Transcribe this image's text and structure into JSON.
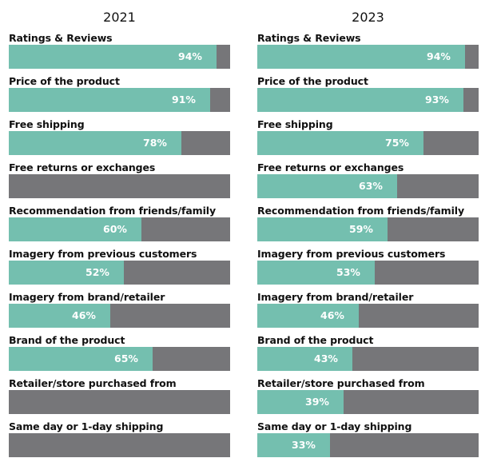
{
  "chart_data": [
    {
      "type": "bar",
      "title": "2021",
      "orientation": "horizontal",
      "xlim": [
        0,
        100
      ],
      "grid": false,
      "categories": [
        "Ratings & Reviews",
        "Price of the product",
        "Free shipping",
        "Free returns or exchanges",
        "Recommendation from friends/family",
        "Imagery from previous customers",
        "Imagery from brand/retailer",
        "Brand of the product",
        "Retailer/store purchased from",
        "Same day or 1-day shipping"
      ],
      "values": [
        94,
        91,
        78,
        null,
        60,
        52,
        46,
        65,
        null,
        null
      ],
      "value_labels": [
        "94%",
        "91%",
        "78%",
        "",
        "60%",
        "52%",
        "46%",
        "65%",
        "",
        ""
      ]
    },
    {
      "type": "bar",
      "title": "2023",
      "orientation": "horizontal",
      "xlim": [
        0,
        100
      ],
      "grid": false,
      "categories": [
        "Ratings & Reviews",
        "Price of the product",
        "Free shipping",
        "Free returns or exchanges",
        "Recommendation from friends/family",
        "Imagery from previous customers",
        "Imagery from brand/retailer",
        "Brand of the product",
        "Retailer/store purchased from",
        "Same day or 1-day shipping"
      ],
      "values": [
        94,
        93,
        75,
        63,
        59,
        53,
        46,
        43,
        39,
        33
      ],
      "value_labels": [
        "94%",
        "93%",
        "75%",
        "63%",
        "59%",
        "53%",
        "46%",
        "43%",
        "39%",
        "33%"
      ]
    }
  ],
  "colors": {
    "fill": "#74bfaf",
    "track": "#767679",
    "value_text": "#ffffff",
    "label_text": "#111111"
  }
}
